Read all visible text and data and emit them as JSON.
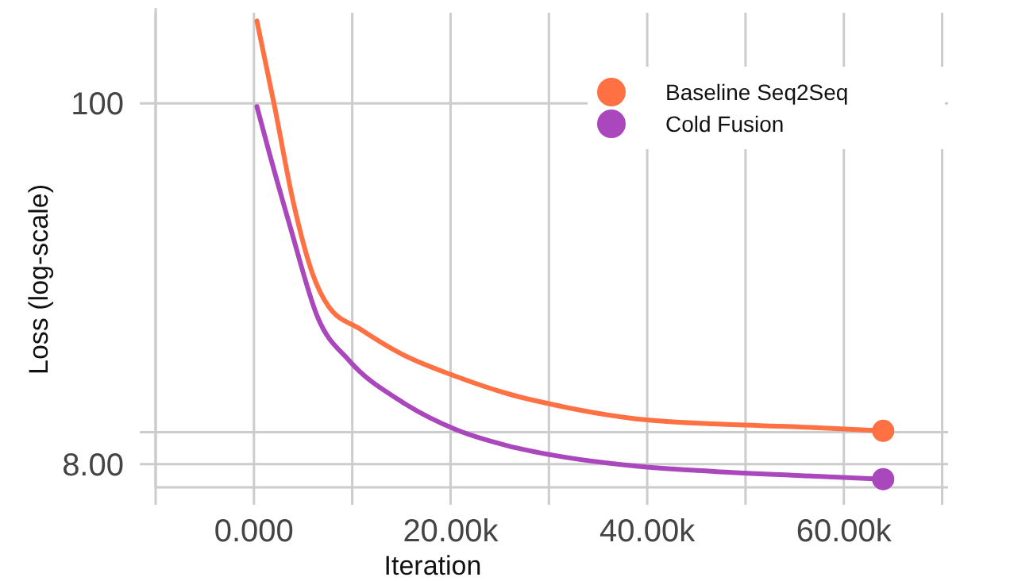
{
  "chart_data": {
    "type": "line",
    "xlabel": "Iteration",
    "ylabel": "Loss (log-scale)",
    "log": "y",
    "grid": true,
    "legend": "top right",
    "marker": "none",
    "line_style": "solid",
    "xlim": [
      -10000,
      70600
    ],
    "xticks": [
      {
        "value": -10000,
        "label": null
      },
      {
        "value": 0,
        "label": "0.000"
      },
      {
        "value": 10000,
        "label": null
      },
      {
        "value": 20000,
        "label": "20.00k"
      },
      {
        "value": 30000,
        "label": null
      },
      {
        "value": 40000,
        "label": "40.00k"
      },
      {
        "value": 50000,
        "label": null
      },
      {
        "value": 60000,
        "label": "60.00k"
      },
      {
        "value": 70000,
        "label": null
      }
    ],
    "ylim": [
      6.8,
      195
    ],
    "yticks": [
      {
        "value": 8,
        "label": "8.00"
      },
      {
        "value": 10,
        "label": null
      },
      100
    ],
    "series": [
      {
        "name": "Baseline Seq2Seq",
        "color": "#ff7043",
        "x": [
          300,
          2100,
          4000,
          6000,
          7600,
          10800,
          15000,
          20500,
          25800,
          30600,
          38700,
          46800,
          54800,
          64000
        ],
        "values": [
          178,
          97.8,
          50.1,
          30.1,
          24.1,
          20.6,
          17.3,
          14.8,
          13.1,
          12.1,
          11.0,
          10.6,
          10.4,
          10.1
        ]
      },
      {
        "name": "Cold Fusion",
        "color": "#ab47bc",
        "x": [
          300,
          1600,
          3700,
          6500,
          9700,
          15000,
          20500,
          25800,
          30600,
          38700,
          46800,
          54800,
          64000
        ],
        "values": [
          97.8,
          70.0,
          42.0,
          22.3,
          16.5,
          12.4,
          10.2,
          9.1,
          8.5,
          7.9,
          7.6,
          7.4,
          7.2
        ]
      },
      {
        "type": "scatter",
        "marker": "circle",
        "color": "#ff7043",
        "x": [
          64000
        ],
        "values": [
          10.1
        ]
      },
      {
        "type": "scatter",
        "marker": "circle",
        "color": "#ab47bc",
        "x": [
          64000
        ],
        "values": [
          7.2
        ]
      }
    ]
  }
}
